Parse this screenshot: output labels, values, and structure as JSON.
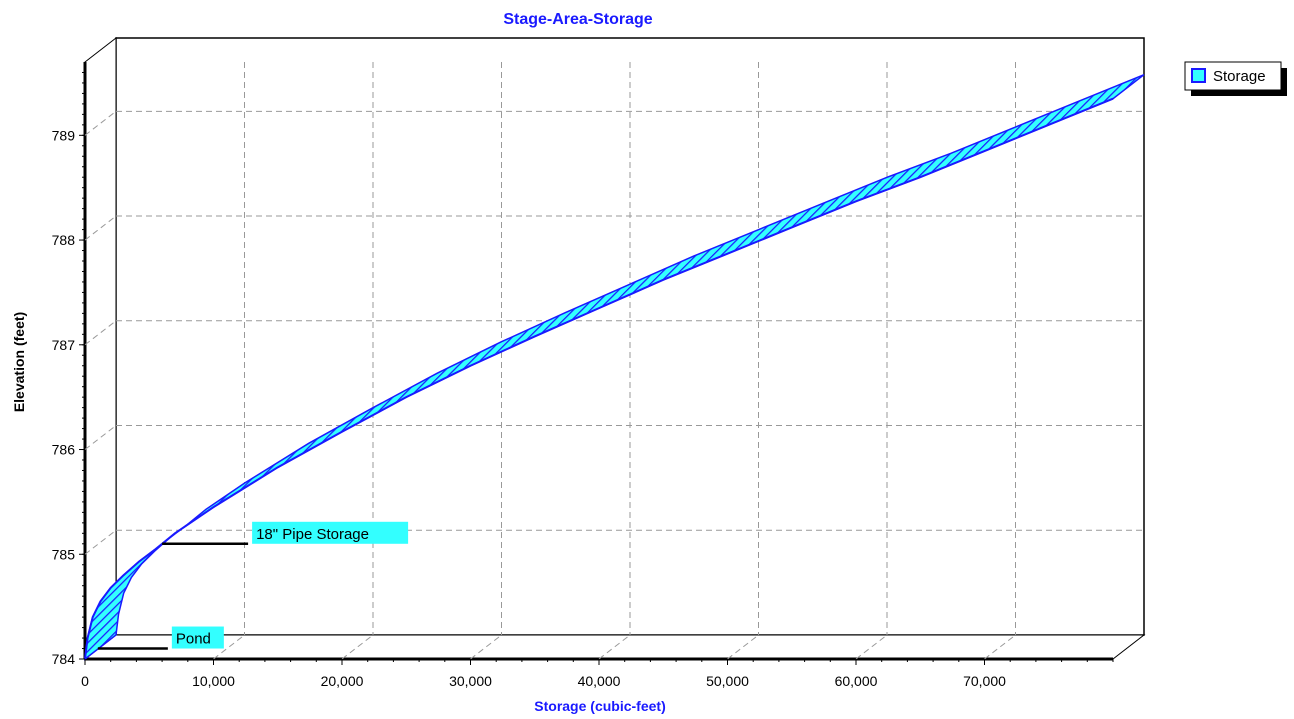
{
  "chart_data": {
    "type": "area",
    "title": "Stage-Area-Storage",
    "xlabel": "Storage (cubic-feet)",
    "ylabel": "Elevation  (feet)",
    "xlim": [
      0,
      80000
    ],
    "ylim": [
      784,
      789.7
    ],
    "x_ticks": [
      "0",
      "10,000",
      "20,000",
      "30,000",
      "40,000",
      "50,000",
      "60,000",
      "70,000"
    ],
    "y_ticks": [
      "784",
      "785",
      "786",
      "787",
      "788",
      "789"
    ],
    "grid": true,
    "legend": {
      "position": "top-right",
      "entries": [
        "Storage"
      ]
    },
    "series": [
      {
        "name": "Storage",
        "color": "#33ffff",
        "edge_color": "#1a1aff",
        "x": [
          0,
          200,
          600,
          1200,
          2000,
          3000,
          4200,
          5500,
          7000,
          10000,
          15000,
          20000,
          25000,
          30000,
          35000,
          40000,
          45000,
          50000,
          55000,
          60000,
          65000,
          70000,
          75000,
          80000
        ],
        "y": [
          784.0,
          784.2,
          784.4,
          784.55,
          784.68,
          784.8,
          784.93,
          785.05,
          785.2,
          785.45,
          785.83,
          786.17,
          786.5,
          786.8,
          787.08,
          787.35,
          787.62,
          787.87,
          788.12,
          788.37,
          788.6,
          788.85,
          789.1,
          789.35
        ]
      }
    ],
    "annotations": [
      {
        "text": "18\" Pipe Storage",
        "x": 6000,
        "y": 785.1
      },
      {
        "text": "Pond",
        "x": 1000,
        "y": 784.1
      }
    ]
  }
}
